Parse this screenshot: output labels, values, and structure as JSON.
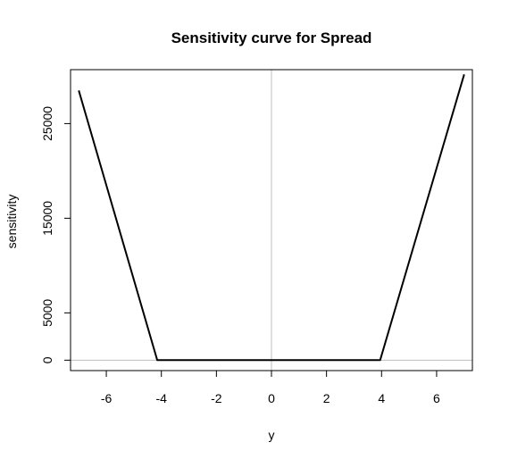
{
  "chart_data": {
    "type": "line",
    "title": "Sensitivity curve for Spread",
    "xlabel": "y",
    "ylabel": "sensitivity",
    "xlim": [
      -7.3,
      7.3
    ],
    "ylim": [
      -1100,
      30700
    ],
    "x_ticks": [
      -6,
      -4,
      -2,
      0,
      2,
      4,
      6
    ],
    "y_ticks": [
      0,
      5000,
      15000,
      25000
    ],
    "x_tick_labels": [
      "-6",
      "-4",
      "-2",
      "0",
      "2",
      "4",
      "6"
    ],
    "y_tick_labels": [
      "0",
      "5000",
      "15000",
      "25000"
    ],
    "reference_lines": {
      "vertical_x": 0,
      "horizontal_y": 0
    },
    "grid": false,
    "series": [
      {
        "x": [
          -7.0,
          -4.15,
          3.95,
          7.0
        ],
        "y": [
          28500,
          0,
          0,
          30200
        ]
      }
    ],
    "colors": {
      "line": "#000000",
      "reference": "#bebebe",
      "frame": "#000000"
    }
  }
}
